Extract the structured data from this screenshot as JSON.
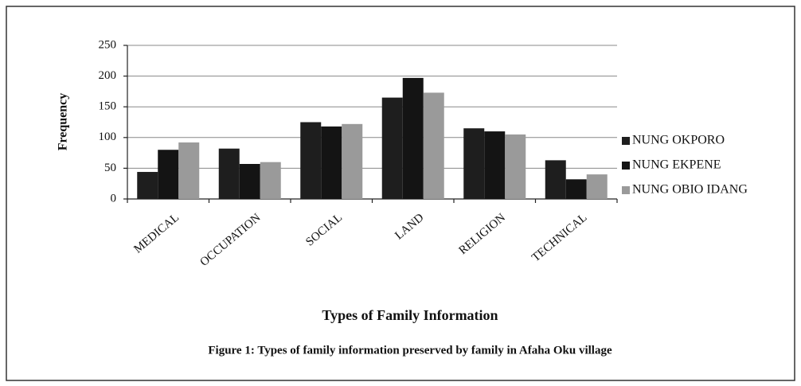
{
  "chart_data": {
    "type": "bar",
    "title": "Figure 1: Types of family information preserved by family in Afaha Oku village",
    "x_label": "Types of Family Information",
    "y_label": "Frequency",
    "categories": [
      "MEDICAL",
      "OCCUPATION",
      "SOCIAL",
      "LAND",
      "RELIGION",
      "TECHNICAL"
    ],
    "series": [
      {
        "name": "NUNG OKPORO",
        "color": "#1e1e1e",
        "values": [
          44,
          82,
          125,
          165,
          115,
          63
        ]
      },
      {
        "name": "NUNG EKPENE",
        "color": "#141414",
        "values": [
          80,
          57,
          118,
          197,
          110,
          32
        ]
      },
      {
        "name": "NUNG OBIO IDANG",
        "color": "#9a9a9a",
        "values": [
          92,
          60,
          122,
          173,
          105,
          40
        ]
      }
    ],
    "ylim": [
      0,
      250
    ],
    "yticks": [
      0,
      50,
      100,
      150,
      200,
      250
    ],
    "grid": true,
    "legend": "right"
  }
}
